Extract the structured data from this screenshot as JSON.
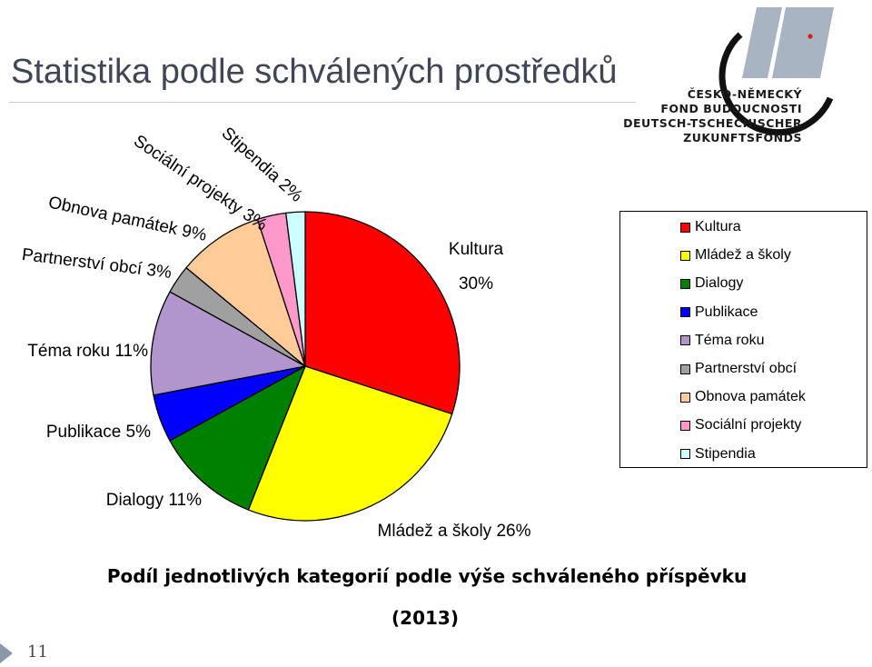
{
  "slide": {
    "title": "Statistika podle schválených prostředků",
    "number": "11"
  },
  "logo": {
    "lines": [
      "ČESKO-NĚMECKÝ",
      "FOND BUDOUCNOSTI",
      "DEUTSCH-TSCHECHISCHER",
      "ZUKUNFTSFONDS"
    ],
    "colors": {
      "primary": "#111111",
      "accent": "#a9b4c2",
      "dot": "#d21f1f"
    }
  },
  "caption": {
    "line1": "Podíl jednotlivých kategorií podle výše schváleného příspěvku",
    "line2": "(2013)"
  },
  "chart_data": {
    "type": "pie",
    "title": "",
    "legend_placement": "right",
    "slices": [
      {
        "name": "Kultura",
        "value": 30,
        "label": "Kultura 30%",
        "color": "#ff0000"
      },
      {
        "name": "Mládež a školy",
        "value": 26,
        "label": "Mládež a školy 26%",
        "color": "#ffff00"
      },
      {
        "name": "Dialogy",
        "value": 11,
        "label": "Dialogy 11%",
        "color": "#008000"
      },
      {
        "name": "Publikace",
        "value": 5,
        "label": "Publikace 5%",
        "color": "#0000ff"
      },
      {
        "name": "Téma roku",
        "value": 11,
        "label": "Téma roku 11%",
        "color": "#b096cc"
      },
      {
        "name": "Partnerství obcí",
        "value": 3,
        "label": "Partnerství obcí 3%",
        "color": "#a0a0a0"
      },
      {
        "name": "Obnova památek",
        "value": 9,
        "label": "Obnova památek 9%",
        "color": "#ffcc99"
      },
      {
        "name": "Sociální projekty",
        "value": 3,
        "label": "Sociální projekty 3%",
        "color": "#ff99cc"
      },
      {
        "name": "Stipendia",
        "value": 2,
        "label": "Stipendia 2%",
        "color": "#ccffff"
      }
    ]
  }
}
